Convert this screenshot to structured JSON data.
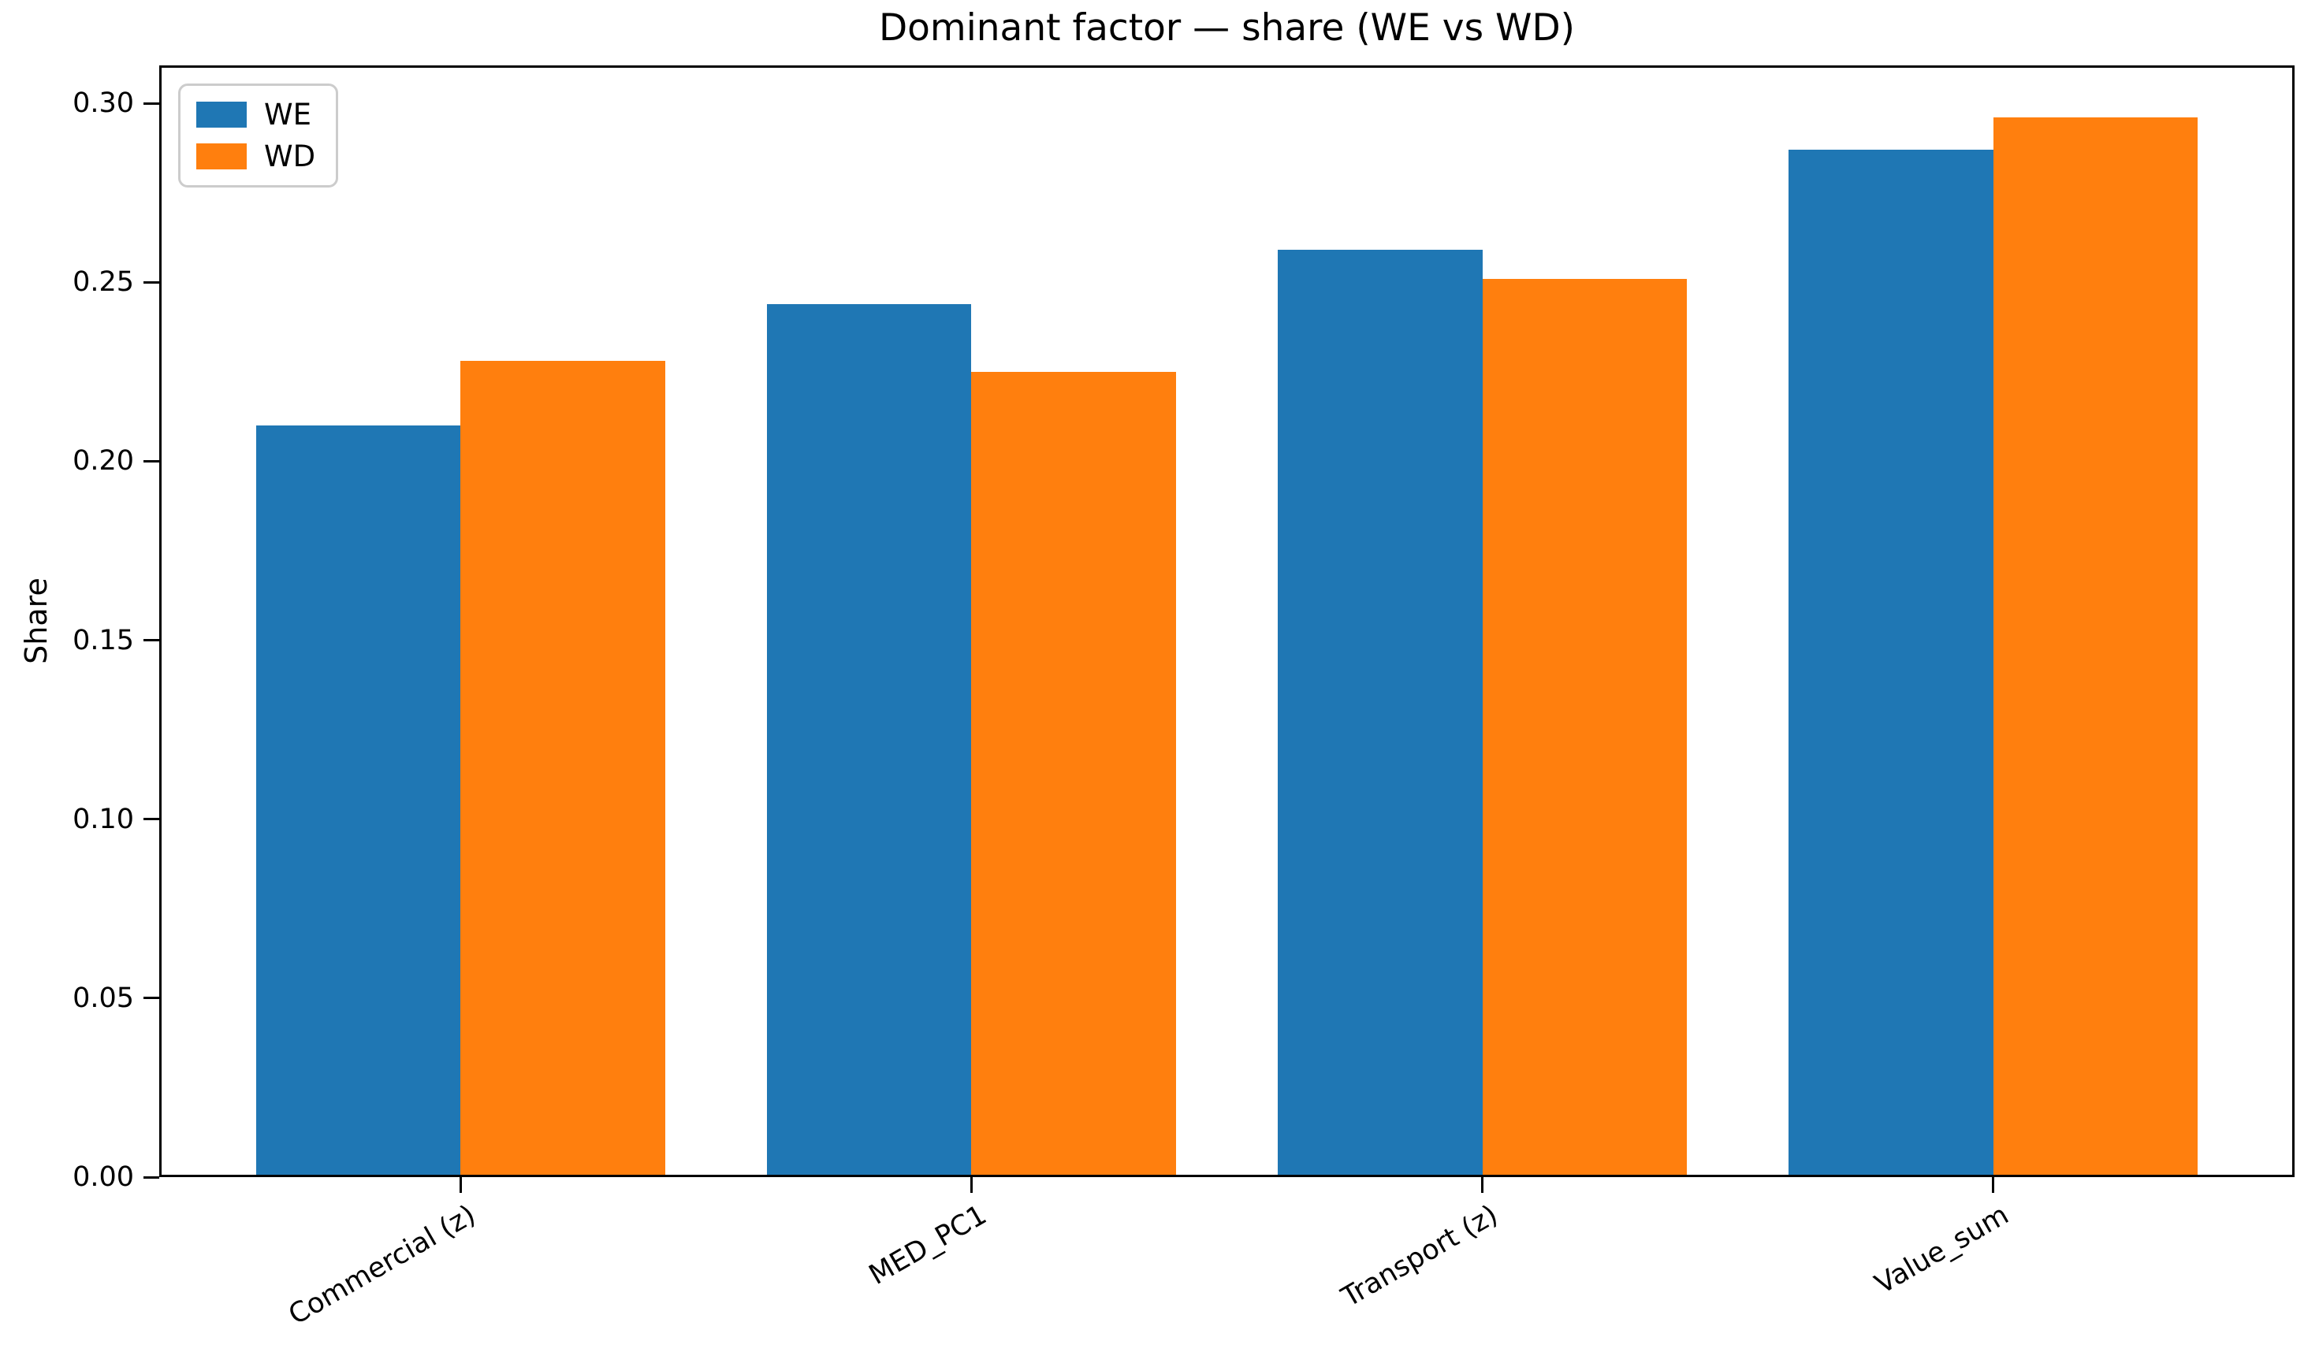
{
  "chart_data": {
    "type": "bar",
    "title": "Dominant factor — share (WE vs WD)",
    "ylabel": "Share",
    "xlabel": "",
    "categories": [
      "Commercial (z)",
      "MED_PC1",
      "Transport (z)",
      "Value_sum"
    ],
    "series": [
      {
        "name": "WE",
        "color": "#1f77b4",
        "values": [
          0.21,
          0.244,
          0.259,
          0.287
        ]
      },
      {
        "name": "WD",
        "color": "#ff7f0e",
        "values": [
          0.228,
          0.225,
          0.251,
          0.296
        ]
      }
    ],
    "yticks": [
      "0.00",
      "0.05",
      "0.10",
      "0.15",
      "0.20",
      "0.25",
      "0.30"
    ],
    "ylim": [
      0,
      0.3106
    ],
    "bar_width": 0.4,
    "x_margin": 0.59,
    "grid": false,
    "legend_position": "upper left"
  }
}
